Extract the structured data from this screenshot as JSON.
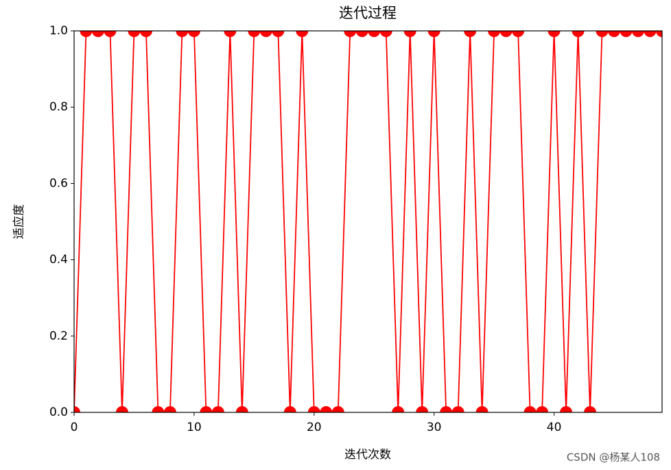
{
  "chart_data": {
    "type": "line",
    "title": "迭代过程",
    "xlabel": "迭代次数",
    "ylabel": "适应度",
    "x": [
      0,
      1,
      2,
      3,
      4,
      5,
      6,
      7,
      8,
      9,
      10,
      11,
      12,
      13,
      14,
      15,
      16,
      17,
      18,
      19,
      20,
      21,
      22,
      23,
      24,
      25,
      26,
      27,
      28,
      29,
      30,
      31,
      32,
      33,
      34,
      35,
      36,
      37,
      38,
      39,
      40,
      41,
      42,
      43,
      44,
      45,
      46,
      47,
      48,
      49
    ],
    "series": [
      {
        "color": "#ff0000",
        "values": [
          0,
          1,
          1,
          1,
          0,
          1,
          1,
          0,
          0,
          1,
          1,
          0,
          0,
          1,
          0,
          1,
          1,
          1,
          0,
          1,
          0,
          0,
          0,
          1,
          1,
          1,
          1,
          0,
          1,
          0,
          1,
          0,
          0,
          1,
          0,
          1,
          1,
          1,
          0,
          0,
          1,
          0,
          1,
          0,
          1,
          1,
          1,
          1,
          1,
          1
        ]
      }
    ],
    "xlim": [
      0,
      49
    ],
    "xticks": [
      0,
      10,
      20,
      30,
      40
    ],
    "ylim": [
      0,
      1
    ],
    "yticks": [
      {
        "value": 0,
        "label": "0.0"
      },
      {
        "value": 0.2,
        "label": "0.2"
      },
      {
        "value": 0.4,
        "label": "0.4"
      },
      {
        "value": 0.6,
        "label": "0.6"
      },
      {
        "value": 0.8,
        "label": "0.8"
      },
      {
        "value": 1,
        "label": "1.0"
      }
    ],
    "grid": false,
    "watermark": "CSDN @杨某人108"
  }
}
